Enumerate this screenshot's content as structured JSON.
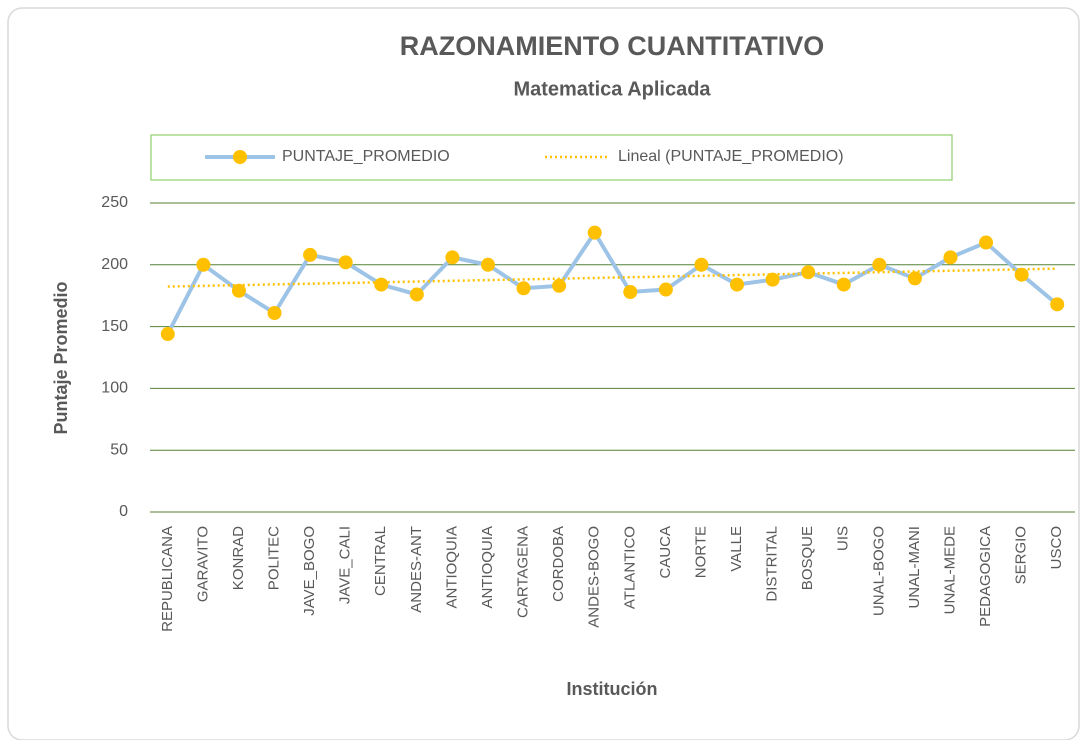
{
  "chart_data": {
    "type": "line",
    "title": "RAZONAMIENTO CUANTITATIVO",
    "subtitle": "Matematica Aplicada",
    "x_label": "Institución",
    "y_label": "Puntaje  Promedio",
    "categories": [
      "REPUBLICANA",
      "GARAVITO",
      "KONRAD",
      "POLITEC",
      "JAVE_BOGO",
      "JAVE_CALI",
      "CENTRAL",
      "ANDES-ANT",
      "ANTIOQUIA",
      "ANTIOQUIA",
      "CARTAGENA",
      "CORDOBA",
      "ANDES-BOGO",
      "ATLANTICO",
      "CAUCA",
      "NORTE",
      "VALLE",
      "DISTRITAL",
      "BOSQUE",
      "UIS",
      "UNAL-BOGO",
      "UNAL-MANI",
      "UNAL-MEDE",
      "PEDAGOGICA",
      "SERGIO",
      "USCO"
    ],
    "series": [
      {
        "name": "PUNTAJE_PROMEDIO",
        "color": "#9dc3e6",
        "marker_color": "#ffc000",
        "values": [
          144,
          200,
          179,
          161,
          208,
          202,
          184,
          176,
          206,
          200,
          181,
          183,
          226,
          178,
          180,
          200,
          184,
          188,
          194,
          184,
          200,
          189,
          206,
          218,
          192,
          168
        ]
      }
    ],
    "trendline": {
      "name": "Lineal (PUNTAJE_PROMEDIO)",
      "color": "#ffc000"
    },
    "ylim": [
      0,
      250
    ],
    "yticks": [
      0,
      50,
      100,
      150,
      200,
      250
    ],
    "grid": true
  }
}
